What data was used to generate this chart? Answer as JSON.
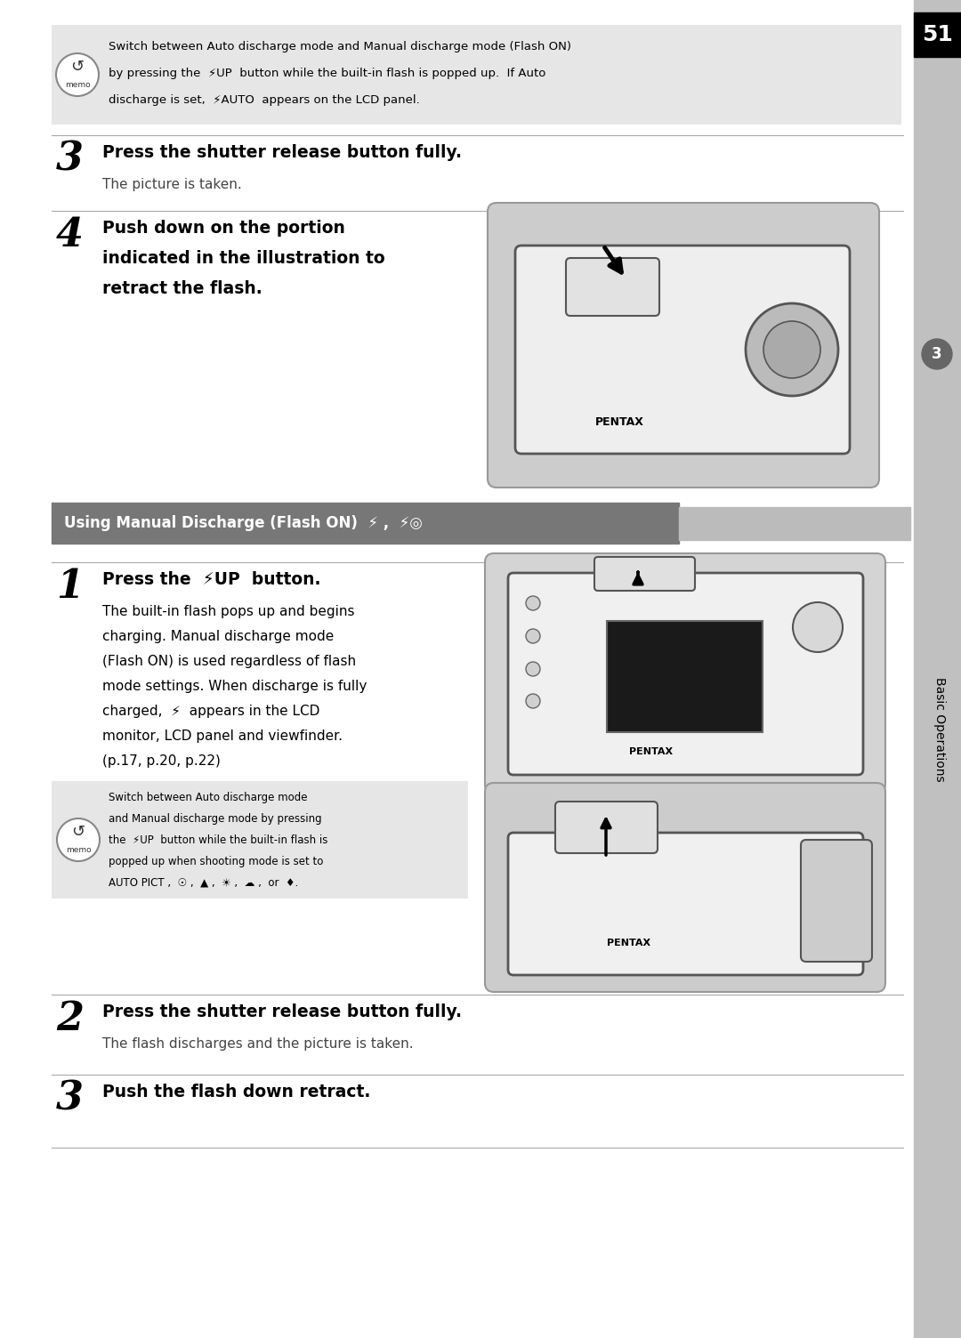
{
  "page_number": "51",
  "bg_color": "#ffffff",
  "sidebar_color": "#c8c8c8",
  "sidebar_text": "Basic Operations",
  "memo_lines": [
    "Switch between Auto discharge mode and Manual discharge mode (Flash ON)",
    "by pressing the  ⚡UP  button while the built-in flash is popped up.  If Auto",
    "discharge is set,  ⚡AUTO  appears on the LCD panel."
  ],
  "step3_number": "3",
  "step3_title": "Press the shutter release button fully.",
  "step3_body": "The picture is taken.",
  "step4_number": "4",
  "step4_title": [
    "Push down on the portion",
    "indicated in the illustration to",
    "retract the flash."
  ],
  "section_header": "Using Manual Discharge (Flash ON)  ⚡ ,  ⚡◎",
  "step1_number": "1",
  "step1_title": "Press the  ⚡UP  button.",
  "step1_body": [
    "The built-in flash pops up and begins",
    "charging. Manual discharge mode",
    "(Flash ON) is used regardless of flash",
    "mode settings. When discharge is fully",
    "charged,  ⚡  appears in the LCD",
    "monitor, LCD panel and viewfinder.",
    "(p.17, p.20, p.22)"
  ],
  "memo2_lines": [
    "Switch between Auto discharge mode",
    "and Manual discharge mode by pressing",
    "the  ⚡UP  button while the built-in flash is",
    "popped up when shooting mode is set to",
    "AUTO PICT ,  ☉ ,  ▲ ,  ☀ ,  ☁ ,  or  ♦."
  ],
  "step2_number": "2",
  "step2_title": "Press the shutter release button fully.",
  "step2_body": "The flash discharges and the picture is taken.",
  "step3b_number": "3",
  "step3b_title": "Push the flash down retract."
}
